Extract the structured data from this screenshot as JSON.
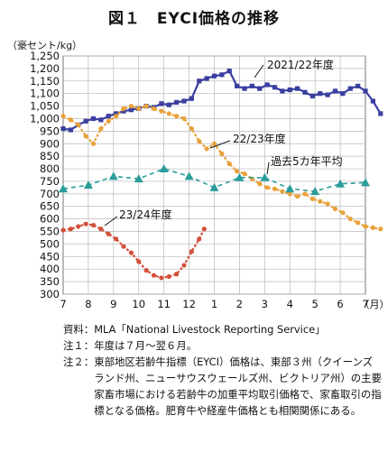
{
  "chart_data": {
    "type": "line",
    "title": "図１　EYCI価格の推移",
    "unit_label": "（豪セント/kg）",
    "x_tick_labels": [
      "7",
      "8",
      "9",
      "10",
      "11",
      "12",
      "1",
      "2",
      "3",
      "4",
      "5",
      "6",
      "7"
    ],
    "x_unit_label": "（月）",
    "ylim": [
      300,
      1250
    ],
    "yticks": [
      300,
      350,
      400,
      450,
      500,
      550,
      600,
      650,
      700,
      750,
      800,
      850,
      900,
      950,
      1000,
      1050,
      1100,
      1150,
      1200,
      1250
    ],
    "ytick_labels": [
      "300",
      "350",
      "400",
      "450",
      "500",
      "550",
      "600",
      "650",
      "700",
      "750",
      "800",
      "850",
      "900",
      "950",
      "1,000",
      "1,050",
      "1,100",
      "1,150",
      "1,200",
      "1,250"
    ],
    "grid": true,
    "series": [
      {
        "name": "2021/22年度",
        "color": "#3a3fa0",
        "marker": "square",
        "points": [
          [
            0,
            960
          ],
          [
            0.3,
            955
          ],
          [
            0.6,
            975
          ],
          [
            0.9,
            990
          ],
          [
            1.2,
            1000
          ],
          [
            1.5,
            995
          ],
          [
            1.8,
            1010
          ],
          [
            2.1,
            1020
          ],
          [
            2.4,
            1030
          ],
          [
            2.7,
            1035
          ],
          [
            3.0,
            1040
          ],
          [
            3.3,
            1050
          ],
          [
            3.6,
            1045
          ],
          [
            3.9,
            1060
          ],
          [
            4.2,
            1055
          ],
          [
            4.5,
            1065
          ],
          [
            4.8,
            1070
          ],
          [
            5.1,
            1080
          ],
          [
            5.4,
            1150
          ],
          [
            5.7,
            1160
          ],
          [
            6.0,
            1170
          ],
          [
            6.3,
            1175
          ],
          [
            6.6,
            1190
          ],
          [
            6.9,
            1130
          ],
          [
            7.2,
            1120
          ],
          [
            7.5,
            1130
          ],
          [
            7.8,
            1120
          ],
          [
            8.1,
            1135
          ],
          [
            8.4,
            1125
          ],
          [
            8.7,
            1110
          ],
          [
            9.0,
            1115
          ],
          [
            9.3,
            1120
          ],
          [
            9.6,
            1105
          ],
          [
            9.9,
            1090
          ],
          [
            10.2,
            1100
          ],
          [
            10.5,
            1095
          ],
          [
            10.8,
            1110
          ],
          [
            11.1,
            1100
          ],
          [
            11.4,
            1120
          ],
          [
            11.7,
            1130
          ],
          [
            12.0,
            1110
          ],
          [
            12.3,
            1070
          ],
          [
            12.6,
            1020
          ]
        ]
      },
      {
        "name": "22/23年度",
        "color": "#e8a23a",
        "marker": "circle",
        "points": [
          [
            0,
            1010
          ],
          [
            0.3,
            995
          ],
          [
            0.6,
            975
          ],
          [
            0.9,
            930
          ],
          [
            1.2,
            900
          ],
          [
            1.5,
            960
          ],
          [
            1.8,
            990
          ],
          [
            2.1,
            1010
          ],
          [
            2.4,
            1040
          ],
          [
            2.7,
            1050
          ],
          [
            3.0,
            1040
          ],
          [
            3.3,
            1050
          ],
          [
            3.6,
            1040
          ],
          [
            3.9,
            1030
          ],
          [
            4.2,
            1020
          ],
          [
            4.5,
            1010
          ],
          [
            4.8,
            1000
          ],
          [
            5.1,
            960
          ],
          [
            5.4,
            910
          ],
          [
            5.7,
            880
          ],
          [
            6.0,
            900
          ],
          [
            6.3,
            860
          ],
          [
            6.6,
            820
          ],
          [
            6.9,
            790
          ],
          [
            7.2,
            780
          ],
          [
            7.5,
            760
          ],
          [
            7.8,
            740
          ],
          [
            8.1,
            725
          ],
          [
            8.4,
            720
          ],
          [
            8.7,
            710
          ],
          [
            9.0,
            700
          ],
          [
            9.3,
            690
          ],
          [
            9.6,
            700
          ],
          [
            9.9,
            680
          ],
          [
            10.2,
            670
          ],
          [
            10.5,
            660
          ],
          [
            10.8,
            640
          ],
          [
            11.1,
            625
          ],
          [
            11.4,
            600
          ],
          [
            11.7,
            585
          ],
          [
            12.0,
            570
          ],
          [
            12.3,
            565
          ],
          [
            12.6,
            560
          ]
        ]
      },
      {
        "name": "過去5カ年平均",
        "color": "#2a9d9a",
        "marker": "triangle",
        "points": [
          [
            0,
            720
          ],
          [
            1,
            735
          ],
          [
            2,
            770
          ],
          [
            3,
            760
          ],
          [
            4,
            800
          ],
          [
            5,
            770
          ],
          [
            6,
            725
          ],
          [
            7,
            765
          ],
          [
            8,
            765
          ],
          [
            9,
            720
          ],
          [
            10,
            710
          ],
          [
            11,
            740
          ],
          [
            12,
            745
          ]
        ]
      },
      {
        "name": "23/24年度",
        "color": "#d3503b",
        "marker": "circle",
        "points": [
          [
            0,
            555
          ],
          [
            0.3,
            560
          ],
          [
            0.6,
            570
          ],
          [
            0.9,
            580
          ],
          [
            1.2,
            575
          ],
          [
            1.5,
            560
          ],
          [
            1.8,
            540
          ],
          [
            2.1,
            520
          ],
          [
            2.4,
            490
          ],
          [
            2.7,
            465
          ],
          [
            3.0,
            430
          ],
          [
            3.3,
            395
          ],
          [
            3.6,
            375
          ],
          [
            3.9,
            365
          ],
          [
            4.2,
            370
          ],
          [
            4.5,
            380
          ],
          [
            4.8,
            415
          ],
          [
            5.1,
            470
          ],
          [
            5.4,
            520
          ],
          [
            5.6,
            560
          ]
        ]
      }
    ],
    "annotations": [
      {
        "text": "2021/22年度"
      },
      {
        "text": "22/23年度"
      },
      {
        "text": "過去5カ年平均"
      },
      {
        "text": "23/24年度"
      }
    ]
  },
  "notes": [
    {
      "label": "資料：",
      "text": "MLA「National Livestock Reporting Service」"
    },
    {
      "label": "注１：",
      "text": "年度は７月～翌６月。"
    },
    {
      "label": "注２：",
      "text": "東部地区若齢牛指標（EYCI）価格は、東部３州（クイーンズランド州、ニューサウスウェールズ州、ビクトリア州）の主要家畜市場における若齢牛の加重平均取引価格で、家畜取引の指標となる価格。肥育牛や経産牛価格とも相関関係にある。"
    }
  ]
}
